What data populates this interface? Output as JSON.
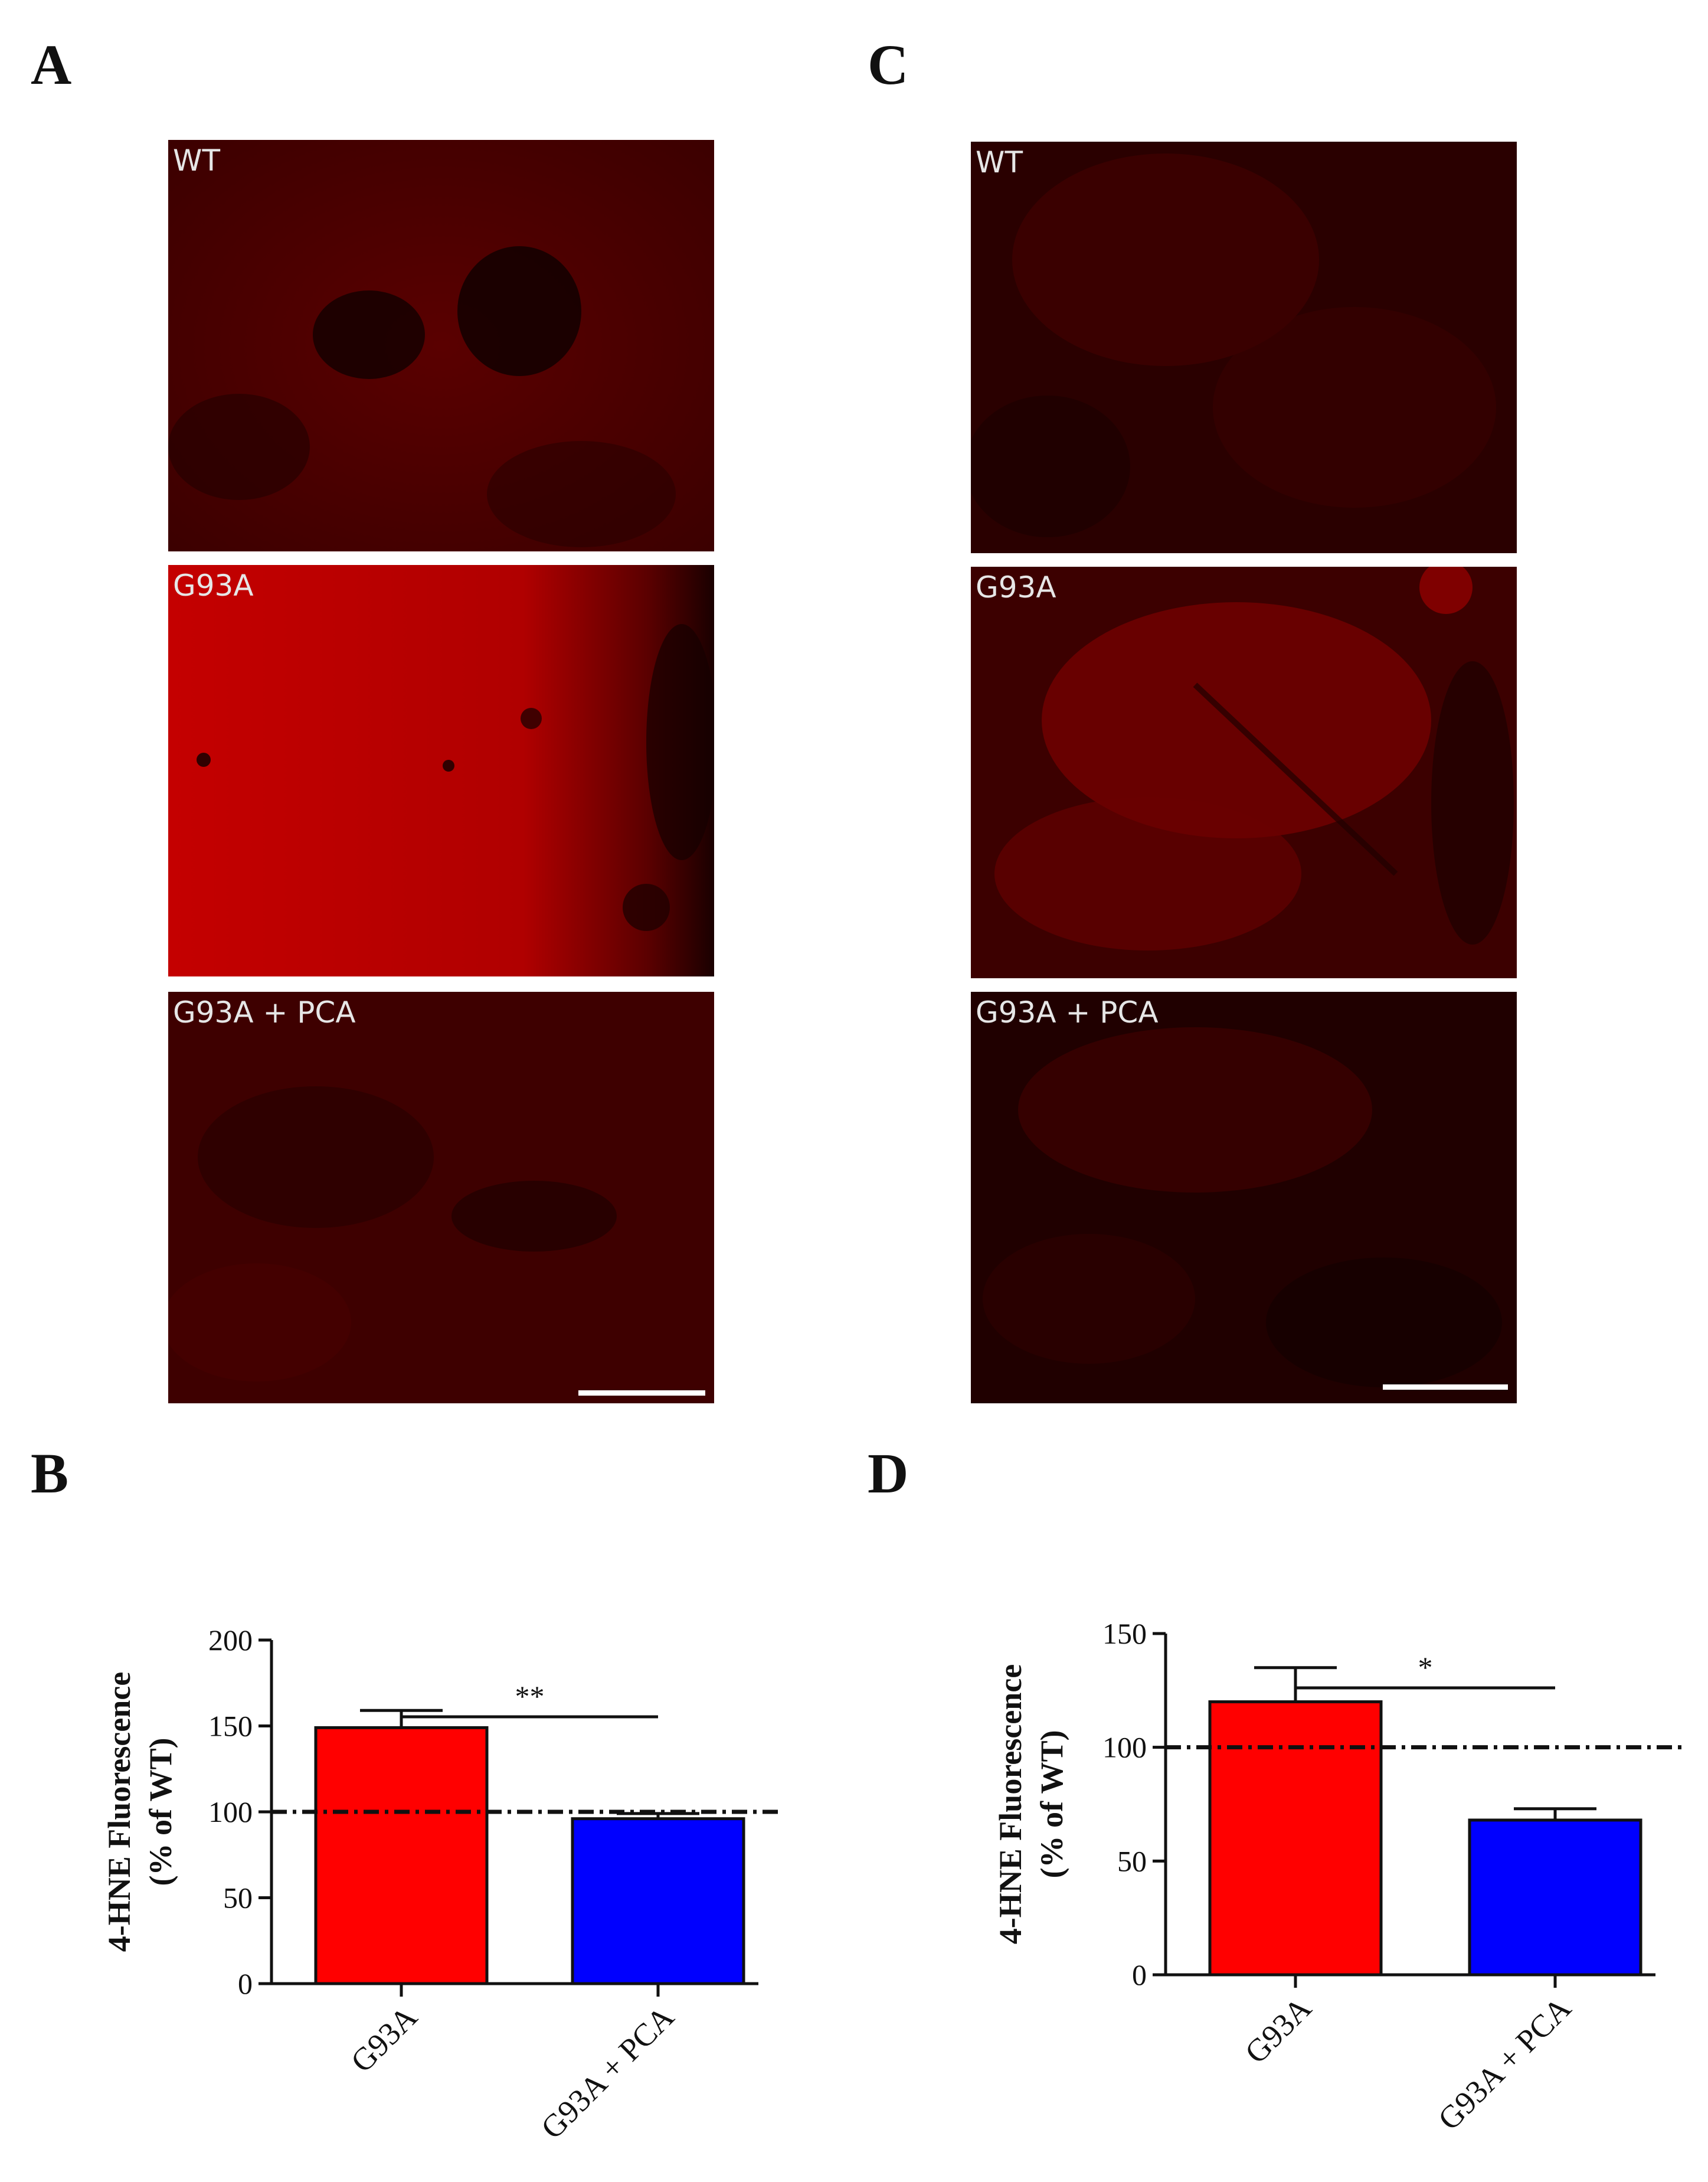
{
  "panels": {
    "A": {
      "letter": "A"
    },
    "B": {
      "letter": "B"
    },
    "C": {
      "letter": "C"
    },
    "D": {
      "letter": "D"
    }
  },
  "micrographs": {
    "A": [
      {
        "label": "WT",
        "intensity": "low"
      },
      {
        "label": "G93A",
        "intensity": "high"
      },
      {
        "label": "G93A + PCA",
        "intensity": "low"
      }
    ],
    "C": [
      {
        "label": "WT",
        "intensity": "low"
      },
      {
        "label": "G93A",
        "intensity": "medium"
      },
      {
        "label": "G93A + PCA",
        "intensity": "low"
      }
    ]
  },
  "colors": {
    "bar_g93a": "#ff0000",
    "bar_pca": "#0000ff",
    "stain_dark": "#3a0000",
    "stain_bright": "#b80000"
  },
  "chart_data": [
    {
      "panel": "B",
      "type": "bar",
      "categories": [
        "G93A",
        "G93A + PCA"
      ],
      "values": [
        149,
        96
      ],
      "errors": [
        10,
        3
      ],
      "ylabel_line1": "4-HNE Fluorescence",
      "ylabel_line2": "(% of WT)",
      "ylim": [
        0,
        200
      ],
      "yticks": [
        0,
        50,
        100,
        150,
        200
      ],
      "reference_line": 100,
      "significance": "**"
    },
    {
      "panel": "D",
      "type": "bar",
      "categories": [
        "G93A",
        "G93A + PCA"
      ],
      "values": [
        120,
        68
      ],
      "errors": [
        15,
        5
      ],
      "ylabel_line1": "4-HNE Fluorescence",
      "ylabel_line2": "(% of WT)",
      "ylim": [
        0,
        150
      ],
      "yticks": [
        0,
        50,
        100,
        150
      ],
      "reference_line": 100,
      "significance": "*"
    }
  ]
}
